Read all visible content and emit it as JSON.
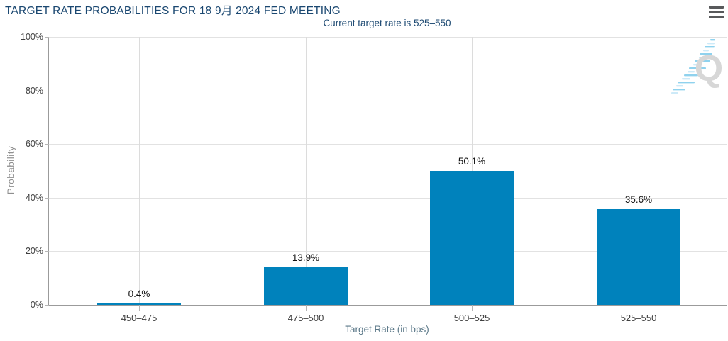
{
  "header": {
    "title": "TARGET RATE PROBABILITIES FOR 18 9月 2024 FED MEETING",
    "subtitle": "Current target rate is 525–550"
  },
  "menu": {
    "icon": "hamburger-menu-icon"
  },
  "watermark": {
    "letter": "Q"
  },
  "colors": {
    "bar": "#0082bc",
    "title_text": "#1b4871",
    "subtitle_text": "#1b4871",
    "axis_line": "#9b9b9b",
    "gridline_h": "#e2e2e2",
    "gridline_v": "#dcdcdc",
    "tick_mark": "#b5b5b5",
    "tick_label": "#3f3f3f",
    "data_label": "#141414",
    "y_axis_title": "#8f8f8f",
    "x_axis_title": "#5b7888",
    "menu_icon": "#58595b",
    "watermark_q": "#d7d7d7",
    "watermark_dash_dark": "#8fd2ee",
    "watermark_dash_light": "#cdeaf8"
  },
  "chart_data": {
    "type": "bar",
    "title": "TARGET RATE PROBABILITIES FOR 18 9月 2024 FED MEETING",
    "subtitle": "Current target rate is 525–550",
    "categories": [
      "450–475",
      "475–500",
      "500–525",
      "525–550"
    ],
    "values": [
      0.4,
      13.9,
      50.1,
      35.6
    ],
    "data_labels": [
      "0.4%",
      "13.9%",
      "50.1%",
      "35.6%"
    ],
    "xlabel": "Target Rate (in bps)",
    "ylabel": "Probability",
    "ylim": [
      0,
      100
    ],
    "y_ticks": [
      "0%",
      "20%",
      "40%",
      "60%",
      "80%",
      "100%"
    ],
    "grid": true,
    "legend": false
  }
}
